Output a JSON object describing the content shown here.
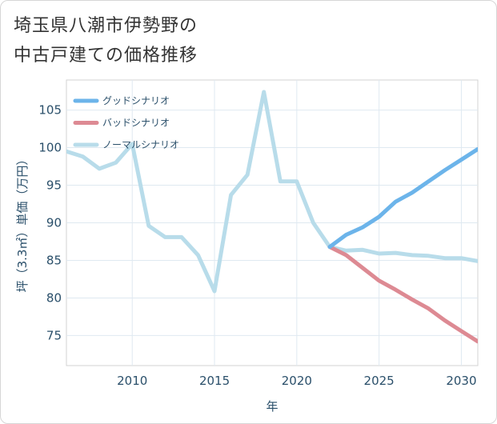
{
  "title_lines": [
    "埼玉県八潮市伊勢野の",
    "中古戸建ての価格推移"
  ],
  "chart_data": {
    "type": "line",
    "title": "埼玉県八潮市伊勢野の中古戸建ての価格推移",
    "xlabel": "年",
    "ylabel": "坪（3.3㎡）単価（万円）",
    "xlim": [
      2006,
      2031
    ],
    "ylim": [
      71,
      109
    ],
    "x_ticks": [
      2010,
      2015,
      2020,
      2025,
      2030
    ],
    "y_ticks": [
      75,
      80,
      85,
      90,
      95,
      100,
      105
    ],
    "grid": true,
    "legend_position": "top-left",
    "series": [
      {
        "name": "グッドシナリオ",
        "color": "#6cb4ea",
        "x": [
          2022,
          2023,
          2024,
          2025,
          2026,
          2027,
          2028,
          2029,
          2030,
          2031
        ],
        "y": [
          86.8,
          88.4,
          89.4,
          90.8,
          92.8,
          94.0,
          95.5,
          97.0,
          98.4,
          99.8
        ]
      },
      {
        "name": "バッドシナリオ",
        "color": "#dd8a93",
        "x": [
          2022,
          2023,
          2024,
          2025,
          2026,
          2027,
          2028,
          2029,
          2030,
          2031
        ],
        "y": [
          86.8,
          85.7,
          84.0,
          82.3,
          81.1,
          79.8,
          78.6,
          77.0,
          75.6,
          74.2
        ]
      },
      {
        "name": "ノーマルシナリオ",
        "color": "#b8dcea",
        "x": [
          2006,
          2007,
          2008,
          2009,
          2010,
          2011,
          2012,
          2013,
          2014,
          2015,
          2016,
          2017,
          2018,
          2019,
          2020,
          2021,
          2022,
          2023,
          2024,
          2025,
          2026,
          2027,
          2028,
          2029,
          2030,
          2031
        ],
        "y": [
          99.5,
          98.8,
          97.2,
          98.0,
          100.5,
          89.6,
          88.1,
          88.1,
          85.7,
          80.9,
          93.7,
          96.4,
          107.4,
          95.5,
          95.5,
          90.0,
          86.8,
          86.3,
          86.4,
          85.9,
          86.0,
          85.7,
          85.6,
          85.3,
          85.3,
          84.9
        ]
      }
    ]
  }
}
